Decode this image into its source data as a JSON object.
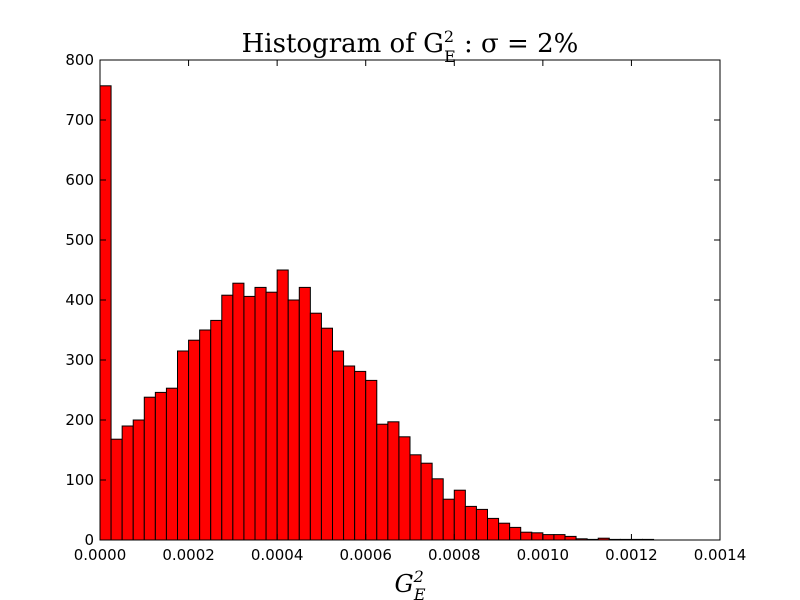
{
  "chart_data": {
    "type": "bar",
    "title": "Histogram of G²E : σ = 2%",
    "title_parts": {
      "prefix": "Histogram of G",
      "sup": "2",
      "sub": "E",
      "rest": " :  σ = 2%"
    },
    "xlabel": "G²E",
    "xlabel_parts": {
      "base": "G",
      "sup": "2",
      "sub": "E"
    },
    "ylabel": "",
    "xlim": [
      0,
      0.0014
    ],
    "ylim": [
      0,
      800
    ],
    "xticks": [
      "0.0000",
      "0.0002",
      "0.0004",
      "0.0006",
      "0.0008",
      "0.0010",
      "0.0012",
      "0.0014"
    ],
    "xtick_values": [
      0,
      0.0002,
      0.0004,
      0.0006,
      0.0008,
      0.001,
      0.0012,
      0.0014
    ],
    "yticks": [
      "0",
      "100",
      "200",
      "300",
      "400",
      "500",
      "600",
      "700",
      "800"
    ],
    "ytick_values": [
      0,
      100,
      200,
      300,
      400,
      500,
      600,
      700,
      800
    ],
    "bin_start": 0,
    "bin_width": 2.5e-05,
    "values": [
      757,
      168,
      190,
      200,
      238,
      246,
      253,
      315,
      333,
      350,
      366,
      408,
      428,
      406,
      421,
      413,
      450,
      400,
      421,
      378,
      353,
      315,
      290,
      281,
      266,
      193,
      197,
      172,
      142,
      128,
      102,
      68,
      83,
      56,
      51,
      36,
      28,
      21,
      13,
      12,
      9,
      9,
      6,
      2,
      1,
      3,
      1,
      1,
      1,
      1
    ],
    "grid": false,
    "bar_color": "#ff0000",
    "edge_color": "#000000"
  }
}
